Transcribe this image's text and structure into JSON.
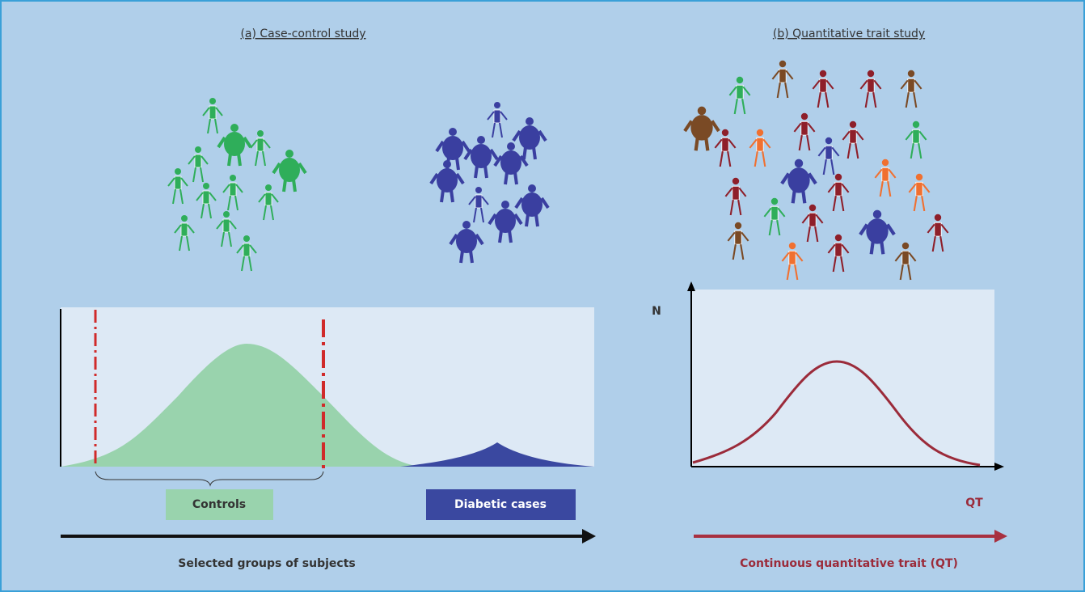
{
  "panel_a": {
    "title": "(a) Case-control study",
    "controls_label": "Controls",
    "cases_label": "Diabetic cases",
    "axis_label": "Selected groups of subjects"
  },
  "panel_b": {
    "title": "(b) Quantitative trait study",
    "y_axis_label": "N",
    "x_axis_label": "QT",
    "axis_label": "Continuous quantitative trait (QT)"
  }
}
